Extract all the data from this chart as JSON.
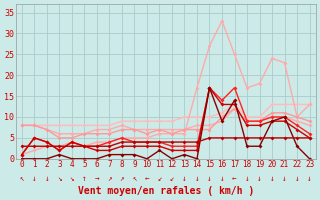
{
  "x": [
    0,
    1,
    2,
    3,
    4,
    5,
    6,
    7,
    8,
    9,
    10,
    11,
    12,
    13,
    14,
    15,
    16,
    17,
    18,
    19,
    20,
    21,
    22,
    23
  ],
  "background_color": "#cceae8",
  "grid_color": "#aaccca",
  "xlabel": "Vent moyen/en rafales ( km/h )",
  "xlabel_color": "#cc0000",
  "tick_color": "#cc0000",
  "ylabel_values": [
    0,
    5,
    10,
    15,
    20,
    25,
    30,
    35
  ],
  "ylim": [
    0,
    37
  ],
  "xlim": [
    -0.5,
    23.5
  ],
  "series": [
    {
      "y": [
        8,
        8,
        8,
        8,
        8,
        8,
        8,
        8,
        9,
        9,
        9,
        9,
        9,
        10,
        10,
        10,
        11,
        13,
        10,
        10,
        13,
        13,
        13,
        13
      ],
      "color": "#ffbbbb",
      "lw": 1.0,
      "marker": "D",
      "ms": 2.0
    },
    {
      "y": [
        8,
        8,
        7,
        6,
        6,
        6,
        7,
        7,
        8,
        7,
        7,
        7,
        7,
        7,
        8,
        8,
        9,
        12,
        9,
        9,
        10,
        10,
        9,
        8
      ],
      "color": "#ffaaaa",
      "lw": 1.0,
      "marker": "D",
      "ms": 2.0
    },
    {
      "y": [
        1,
        2,
        3,
        3,
        4,
        3,
        4,
        4,
        5,
        5,
        5,
        6,
        6,
        6,
        17,
        27,
        33,
        25,
        17,
        18,
        24,
        23,
        10,
        13
      ],
      "color": "#ffaaaa",
      "lw": 1.0,
      "marker": "D",
      "ms": 2.0
    },
    {
      "y": [
        8,
        8,
        7,
        5,
        5,
        6,
        6,
        6,
        7,
        7,
        6,
        7,
        6,
        7,
        7,
        7,
        10,
        12,
        9,
        9,
        11,
        11,
        10,
        9
      ],
      "color": "#ff9999",
      "lw": 1.0,
      "marker": "D",
      "ms": 2.0
    },
    {
      "y": [
        1,
        5,
        4,
        2,
        4,
        3,
        3,
        4,
        5,
        4,
        4,
        4,
        3,
        3,
        3,
        17,
        14,
        17,
        9,
        9,
        10,
        10,
        8,
        6
      ],
      "color": "#ff2222",
      "lw": 1.0,
      "marker": "D",
      "ms": 2.0
    },
    {
      "y": [
        1,
        5,
        4,
        2,
        4,
        3,
        2,
        2,
        3,
        3,
        3,
        3,
        2,
        2,
        2,
        17,
        13,
        13,
        8,
        8,
        9,
        9,
        7,
        5
      ],
      "color": "#cc0000",
      "lw": 1.0,
      "marker": "D",
      "ms": 2.0
    },
    {
      "y": [
        0,
        0,
        0,
        1,
        0,
        0,
        0,
        1,
        1,
        1,
        0,
        2,
        0,
        1,
        0,
        17,
        9,
        14,
        3,
        3,
        9,
        10,
        3,
        0
      ],
      "color": "#880000",
      "lw": 1.0,
      "marker": "D",
      "ms": 2.0
    },
    {
      "y": [
        3,
        3,
        3,
        3,
        3,
        3,
        3,
        3,
        4,
        4,
        4,
        4,
        4,
        4,
        4,
        5,
        5,
        5,
        5,
        5,
        5,
        5,
        5,
        5
      ],
      "color": "#bb0000",
      "lw": 1.0,
      "marker": "D",
      "ms": 2.0
    }
  ],
  "arrow_symbols": [
    "↖",
    "↓",
    "↓",
    "↘",
    "↘",
    "↑",
    "→",
    "↗",
    "↗",
    "↖",
    "←",
    "↙",
    "↙",
    "↓",
    "↓",
    "↓",
    "↓",
    "←",
    "↓",
    "↓",
    "↓",
    "↓",
    "↓",
    "↓"
  ]
}
